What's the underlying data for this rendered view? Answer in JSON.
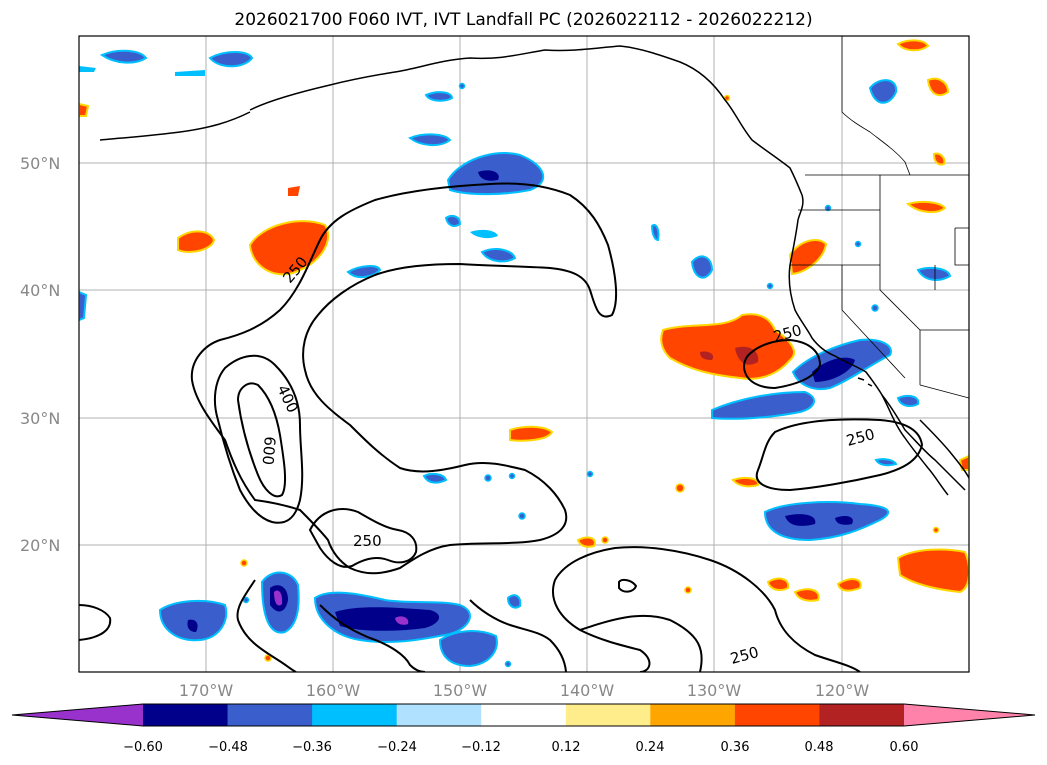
{
  "title": "2026021700 F060 IVT, IVT Landfall PC (2026022112 - 2026022212)",
  "lat_labels": [
    "50°N",
    "40°N",
    "30°N",
    "20°N"
  ],
  "lon_labels": [
    "170°W",
    "160°W",
    "150°W",
    "140°W",
    "130°W",
    "120°W"
  ],
  "contour_labels": [
    "250",
    "400",
    "600",
    "250",
    "250",
    "250",
    "250"
  ],
  "colorbar": {
    "ticks": [
      "−0.60",
      "−0.48",
      "−0.36",
      "−0.24",
      "−0.12",
      "0.12",
      "0.24",
      "0.36",
      "0.48",
      "0.60"
    ],
    "colors": [
      "#9932cc",
      "#00008b",
      "#3a5fcd",
      "#00bfff",
      "#b0e2ff",
      "#ffffff",
      "#ffec8b",
      "#ffa500",
      "#ff4500",
      "#b22222",
      "#ff82ab"
    ]
  }
}
